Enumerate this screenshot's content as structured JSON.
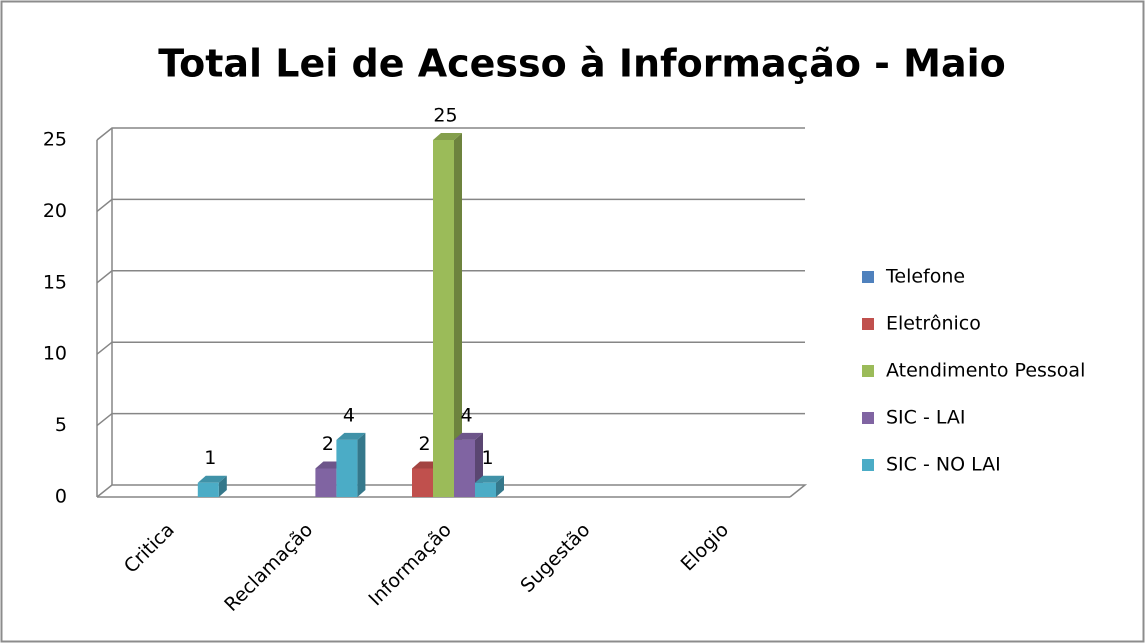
{
  "chart_data": {
    "type": "bar3d",
    "title": "Total  Lei de Acesso à Informação - Maio",
    "categories": [
      "Critica",
      "Reclamação",
      "Informação",
      "Sugestão",
      "Elogio"
    ],
    "series": [
      {
        "name": "Telefone",
        "color": "#4f81bd",
        "values": [
          null,
          null,
          null,
          null,
          null
        ]
      },
      {
        "name": "Eletrônico",
        "color": "#c0504d",
        "values": [
          null,
          null,
          2,
          null,
          null
        ]
      },
      {
        "name": "Atendimento Pessoal",
        "color": "#9bbb59",
        "values": [
          null,
          null,
          25,
          null,
          null
        ]
      },
      {
        "name": "SIC - LAI",
        "color": "#8064a2",
        "values": [
          null,
          2,
          4,
          null,
          null
        ]
      },
      {
        "name": "SIC - NO LAI",
        "color": "#4bacc6",
        "values": [
          1,
          4,
          1,
          null,
          null
        ]
      }
    ],
    "ylim": [
      0,
      25
    ],
    "yticks": [
      0,
      5,
      10,
      15,
      20,
      25
    ],
    "grid": true,
    "legend": "right"
  }
}
